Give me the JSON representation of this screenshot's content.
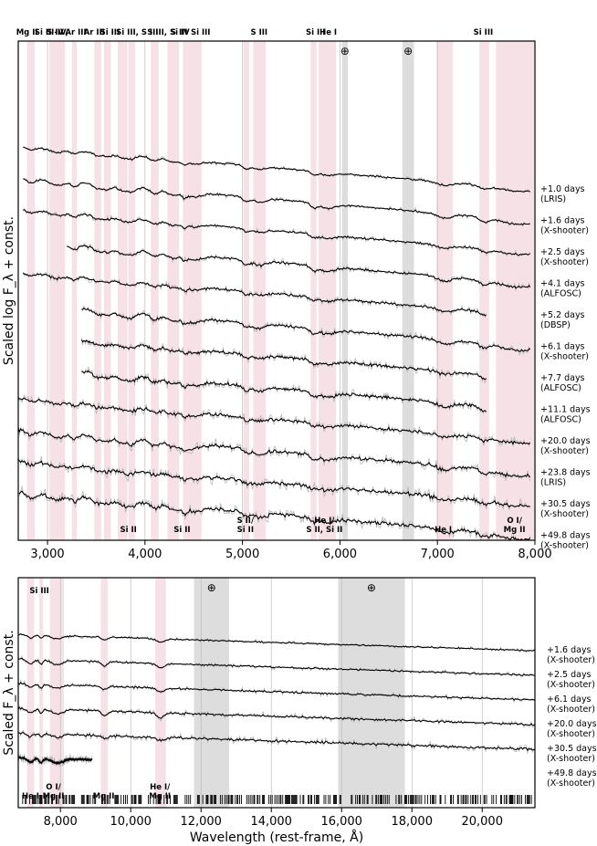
{
  "chart_data": [
    {
      "type": "line",
      "panel": "optical",
      "ylabel": "Scaled log F_λ + const.",
      "xlim": [
        2700,
        8000
      ],
      "xticks": [
        3000,
        4000,
        5000,
        6000,
        7000,
        8000
      ],
      "xtick_labels": [
        "3,000",
        "4,000",
        "5,000",
        "6,000",
        "7,000",
        "8,000"
      ],
      "grid": "vertical",
      "telluric_symbol": "⊕",
      "telluric_bands": [
        [
          6020,
          6080
        ],
        [
          6640,
          6760
        ]
      ],
      "line_regions": [
        [
          2790,
          2870
        ],
        [
          3020,
          3180
        ],
        [
          3250,
          3300
        ],
        [
          3480,
          3550
        ],
        [
          3580,
          3650
        ],
        [
          3720,
          3820
        ],
        [
          3830,
          3900
        ],
        [
          4060,
          4140
        ],
        [
          4230,
          4350
        ],
        [
          4390,
          4420
        ],
        [
          4420,
          4580
        ],
        [
          5010,
          5070
        ],
        [
          5110,
          5240
        ],
        [
          5700,
          5760
        ],
        [
          5780,
          5960
        ],
        [
          6990,
          7160
        ],
        [
          7430,
          7530
        ],
        [
          7600,
          7990
        ]
      ],
      "line_labels_top": [
        {
          "text": "Mg II",
          "x": 2790
        },
        {
          "text": "Si III-IV,",
          "x": 3040
        },
        {
          "text": "S IV",
          "x": 3080
        },
        {
          "text": "Ar III",
          "x": 3290
        },
        {
          "text": "Ar III",
          "x": 3480
        },
        {
          "text": "Si III",
          "x": 3640
        },
        {
          "text": "Si III, S III",
          "x": 3920
        },
        {
          "text": "S III, Si IV",
          "x": 4240
        },
        {
          "text": "S III",
          "x": 4350
        },
        {
          "text": "Si III",
          "x": 4570
        },
        {
          "text": "S III",
          "x": 5170
        },
        {
          "text": "Si III",
          "x": 5750
        },
        {
          "text": "He I",
          "x": 5880
        },
        {
          "text": "Si III",
          "x": 7470
        }
      ],
      "line_labels_bottom": [
        {
          "lines": [
            "Si II"
          ],
          "x": 3830
        },
        {
          "lines": [
            "Si II"
          ],
          "x": 4380
        },
        {
          "lines": [
            "S II/",
            "Si II"
          ],
          "x": 5030
        },
        {
          "lines": [
            "He I/",
            "S II, Si II"
          ],
          "x": 5840
        },
        {
          "lines": [
            "He I"
          ],
          "x": 7060
        },
        {
          "lines": [
            "O I/",
            "Mg II"
          ],
          "x": 7790
        }
      ],
      "series": [
        {
          "name": "+1.0 days",
          "sub": "(LRIS)",
          "xrange": [
            2750,
            7950
          ],
          "offset": 0
        },
        {
          "name": "+1.6 days",
          "sub": "(X-shooter)",
          "xrange": [
            2750,
            7950
          ],
          "offset": 1
        },
        {
          "name": "+2.5 days",
          "sub": "(X-shooter)",
          "xrange": [
            2750,
            7950
          ],
          "offset": 2
        },
        {
          "name": "+4.1 days",
          "sub": "(ALFOSC)",
          "xrange": [
            3200,
            7950
          ],
          "offset": 3
        },
        {
          "name": "+5.2 days",
          "sub": "(DBSP)",
          "xrange": [
            2750,
            7500
          ],
          "offset": 4
        },
        {
          "name": "+6.1 days",
          "sub": "(X-shooter)",
          "xrange": [
            3350,
            7950
          ],
          "offset": 5
        },
        {
          "name": "+7.7 days",
          "sub": "(ALFOSC)",
          "xrange": [
            3350,
            7500
          ],
          "offset": 6
        },
        {
          "name": "+11.1 days",
          "sub": "(ALFOSC)",
          "xrange": [
            3350,
            7500
          ],
          "offset": 7
        },
        {
          "name": "+20.0 days",
          "sub": "(X-shooter)",
          "xrange": [
            2700,
            7950
          ],
          "offset": 8
        },
        {
          "name": "+23.8 days",
          "sub": "(LRIS)",
          "xrange": [
            2700,
            7950
          ],
          "offset": 9
        },
        {
          "name": "+30.5 days",
          "sub": "(X-shooter)",
          "xrange": [
            2700,
            7950
          ],
          "offset": 10
        },
        {
          "name": "+49.8 days",
          "sub": "(X-shooter)",
          "xrange": [
            2700,
            7950
          ],
          "offset": 11
        }
      ]
    },
    {
      "type": "line",
      "panel": "nir",
      "xlabel": "Wavelength (rest-frame, Å)",
      "ylabel": "Scaled F_λ + const.",
      "xlim": [
        6800,
        21500
      ],
      "xticks": [
        8000,
        10000,
        12000,
        14000,
        16000,
        18000,
        20000
      ],
      "xtick_labels": [
        "8,000",
        "10,000",
        "12,000",
        "14,000",
        "16,000",
        "18,000",
        "20,000"
      ],
      "grid": "vertical",
      "telluric_symbol": "⊕",
      "telluric_bands": [
        [
          11800,
          12800
        ],
        [
          15900,
          17800
        ]
      ],
      "line_regions": [
        [
          7050,
          7250
        ],
        [
          7400,
          7500
        ],
        [
          7700,
          8100
        ],
        [
          9150,
          9350
        ],
        [
          10700,
          11000
        ]
      ],
      "line_labels_top": [
        {
          "text": "Si III",
          "x": 7400
        }
      ],
      "line_labels_bottom": [
        {
          "lines": [
            "He I"
          ],
          "x": 7150
        },
        {
          "lines": [
            "O I/",
            "Mg II"
          ],
          "x": 7800
        },
        {
          "lines": [
            "Mg II"
          ],
          "x": 9230
        },
        {
          "lines": [
            "He I/",
            "Mg II"
          ],
          "x": 10830
        }
      ],
      "series": [
        {
          "name": "+1.6 days",
          "sub": "(X-shooter)",
          "xrange": [
            6800,
            21500
          ],
          "offset": 0
        },
        {
          "name": "+2.5 days",
          "sub": "(X-shooter)",
          "xrange": [
            6800,
            21500
          ],
          "offset": 1
        },
        {
          "name": "+6.1 days",
          "sub": "(X-shooter)",
          "xrange": [
            6800,
            21500
          ],
          "offset": 2
        },
        {
          "name": "+20.0 days",
          "sub": "(X-shooter)",
          "xrange": [
            6800,
            21500
          ],
          "offset": 3
        },
        {
          "name": "+30.5 days",
          "sub": "(X-shooter)",
          "xrange": [
            6800,
            21500
          ],
          "offset": 4
        },
        {
          "name": "+49.8 days",
          "sub": "(X-shooter)",
          "xrange": [
            6800,
            8900
          ],
          "offset": 5
        }
      ]
    }
  ]
}
